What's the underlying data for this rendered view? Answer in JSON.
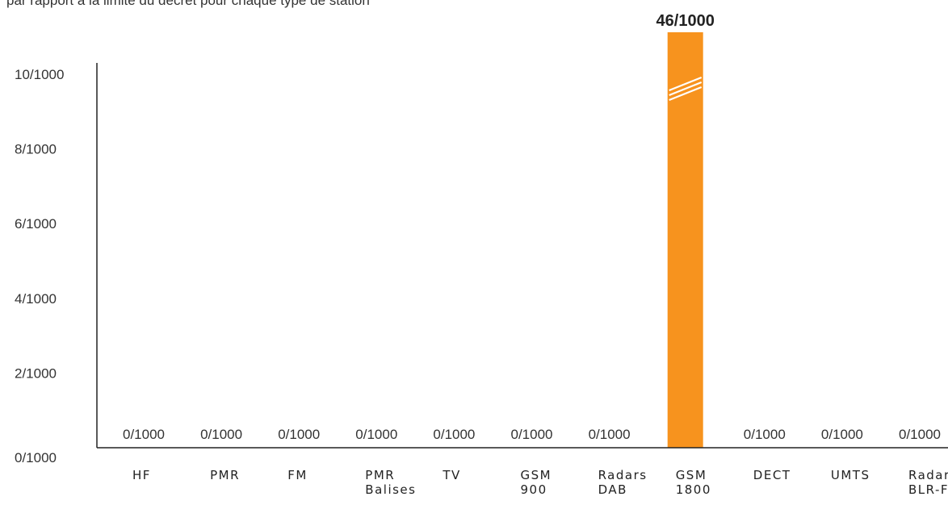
{
  "header": {
    "subtitle": "par rapport à la limite du décret pour chaque type de station"
  },
  "colors": {
    "bar": "#f7931e",
    "axis": "#222222",
    "break_marks": "#ffffff"
  },
  "chart_data": {
    "type": "bar",
    "title": "",
    "xlabel": "",
    "ylabel": "",
    "ylim": [
      0,
      11
    ],
    "y_axis_break": true,
    "y_ticks": [
      0,
      2,
      4,
      6,
      8,
      10
    ],
    "y_tick_labels": [
      "0/1000",
      "2/1000",
      "4/1000",
      "6/1000",
      "8/1000",
      "10/1000"
    ],
    "categories": [
      [
        "HF"
      ],
      [
        "PMR"
      ],
      [
        "FM"
      ],
      [
        "PMR",
        "Balises"
      ],
      [
        "TV"
      ],
      [
        "GSM",
        "900"
      ],
      [
        "Radars",
        "DAB"
      ],
      [
        "GSM",
        "1800"
      ],
      [
        "DECT"
      ],
      [
        "UMTS"
      ],
      [
        "Radars",
        "BLR-FH"
      ]
    ],
    "values": [
      0,
      0,
      0,
      0,
      0,
      0,
      0,
      46,
      0,
      0,
      0
    ],
    "value_labels": [
      "0/1000",
      "0/1000",
      "0/1000",
      "0/1000",
      "0/1000",
      "0/1000",
      "0/1000",
      "46/1000",
      "0/1000",
      "0/1000",
      "0/1000"
    ],
    "grid": false,
    "legend": "none"
  }
}
